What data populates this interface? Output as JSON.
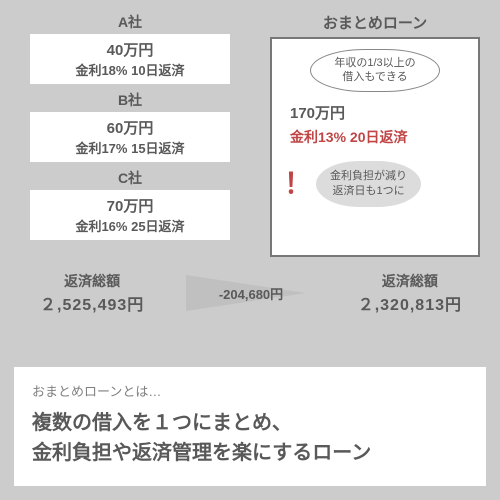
{
  "lenders": [
    {
      "name": "A社",
      "amount": "40万円",
      "terms": "金利18% 10日返済"
    },
    {
      "name": "B社",
      "amount": "60万円",
      "terms": "金利17% 15日返済"
    },
    {
      "name": "C社",
      "amount": "70万円",
      "terms": "金利16% 25日返済"
    }
  ],
  "consolidated": {
    "title": "おまとめローン",
    "speech_l1": "年収の1/3以上の",
    "speech_l2": "借入もできる",
    "amount": "170万円",
    "terms": "金利13% 20日返済",
    "excl": "！",
    "note_l1": "金利負担が減り",
    "note_l2": "返済日も1つに"
  },
  "totals": {
    "left_label": "返済総額",
    "left_value": "２,525,493円",
    "diff": "-204,680円",
    "right_label": "返済総額",
    "right_value": "２,320,813円"
  },
  "bottom": {
    "lead": "おまとめローンとは…",
    "line1": "複数の借入を１つにまとめ、",
    "line2": "金利負担や返済管理を楽にするローン"
  },
  "colors": {
    "bg": "#cccccc",
    "text": "#595959",
    "accent_red": "#c04545",
    "card_bg": "#ffffff",
    "bubble_bg": "#dcdcdc"
  }
}
